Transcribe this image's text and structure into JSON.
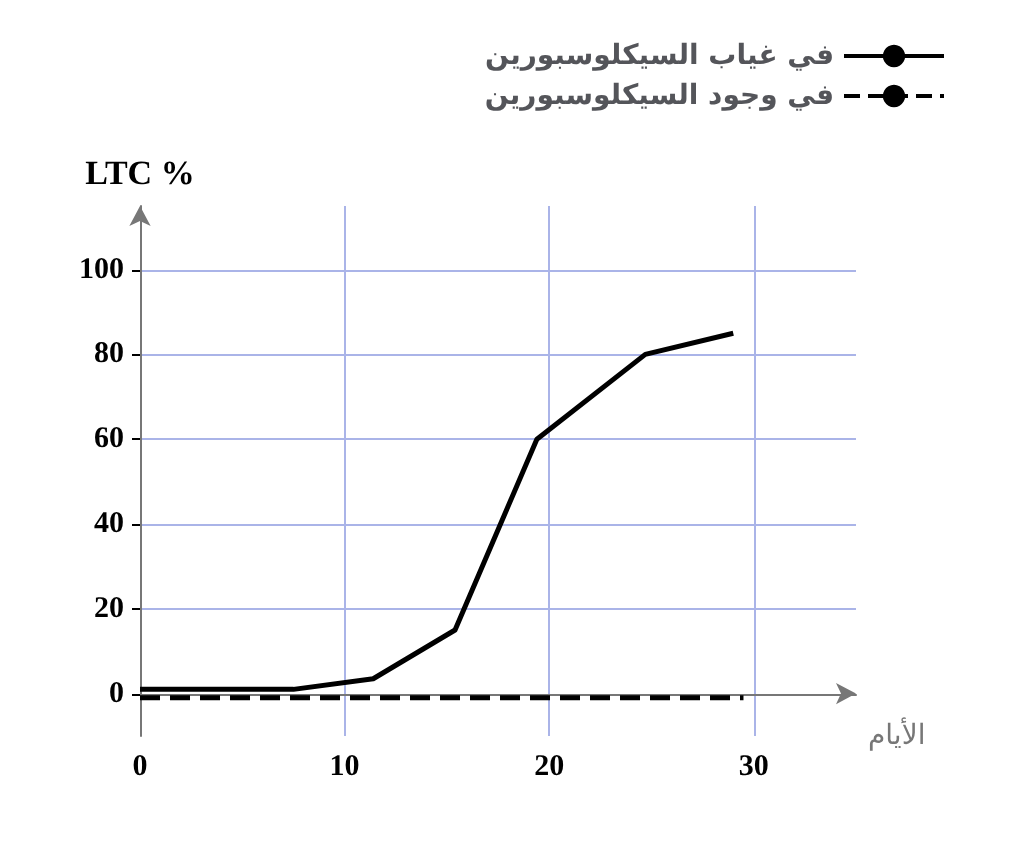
{
  "chart_data": {
    "type": "line",
    "xlabel": "الأيام",
    "ylabel": "LTC %",
    "xlim": [
      0,
      35
    ],
    "ylim": [
      -10,
      115
    ],
    "xticks": [
      0,
      10,
      20,
      30
    ],
    "yticks": [
      0,
      20,
      40,
      60,
      80,
      100
    ],
    "series": [
      {
        "name": "في غياب السيكلوسبورين",
        "color": "#000000",
        "line_style": "solid",
        "x": [
          0,
          7.5,
          11.4,
          15.4,
          19.4,
          24.7,
          29
        ],
        "values": [
          1,
          1,
          3.5,
          15,
          60,
          80,
          85
        ]
      },
      {
        "name": "في وجود السيكلوسبورين",
        "color": "#000000",
        "line_style": "dashed",
        "x": [
          0,
          29.5
        ],
        "values": [
          -1,
          -1
        ]
      }
    ],
    "grid": true,
    "legend": "top right",
    "marker": "none"
  }
}
